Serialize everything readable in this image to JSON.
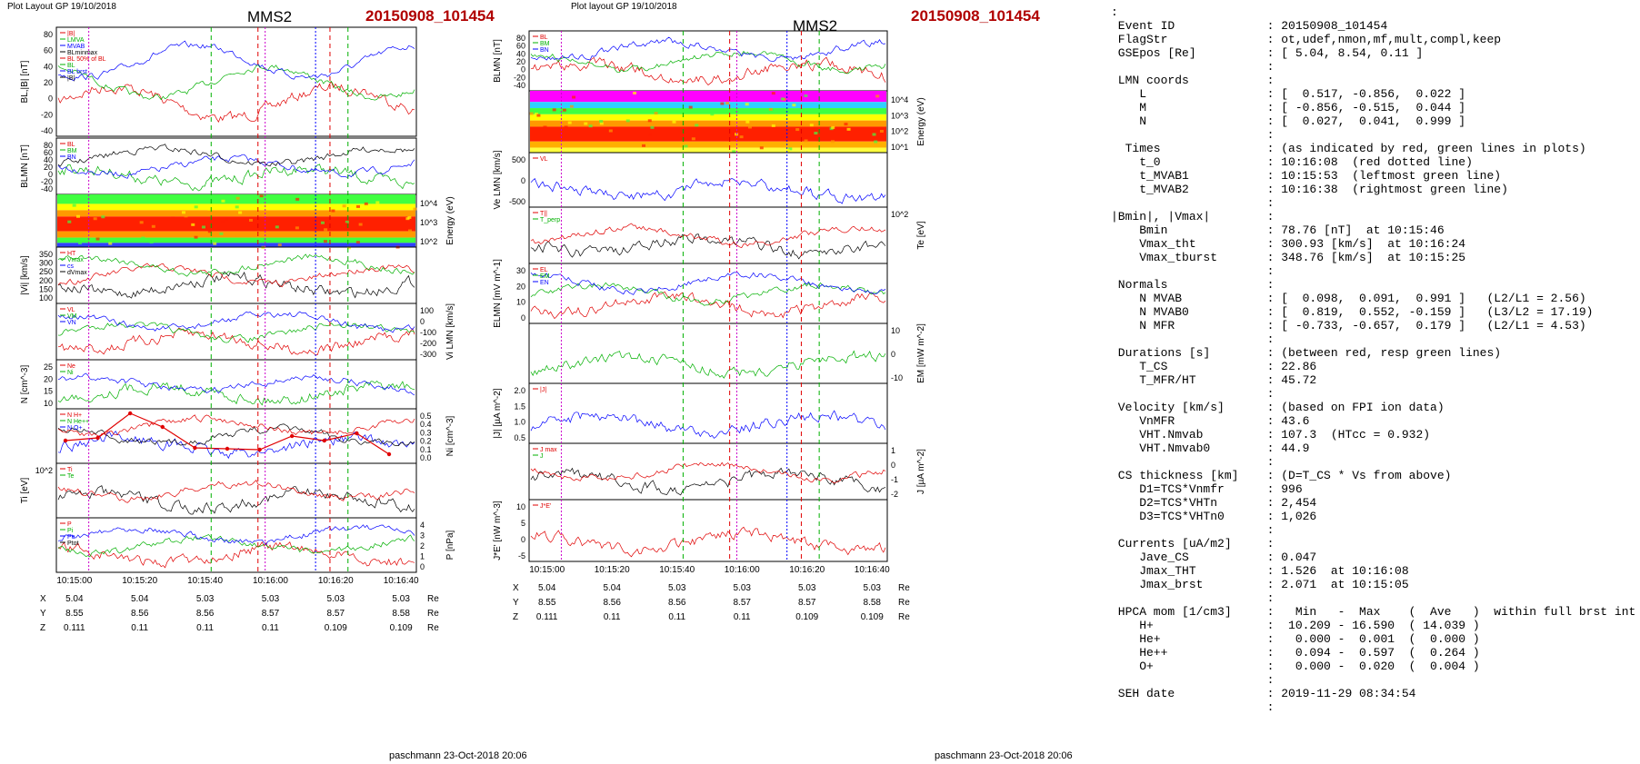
{
  "header": {
    "left_caption": "Plot Layout GP 19/10/2018",
    "mid_caption": "Plot layout GP 19/10/2018",
    "spacecraft": "MMS2",
    "event": "20150908_101454",
    "footer": "paschmann 23-Oct-2018 20:06"
  },
  "axis_time": {
    "ticks": [
      "10:15:00",
      "10:15:20",
      "10:15:40",
      "10:16:00",
      "10:16:20",
      "10:16:40"
    ]
  },
  "position_table": {
    "rows": [
      {
        "label": "X",
        "values": [
          "5.04",
          "5.04",
          "5.03",
          "5.03",
          "5.03",
          "5.03"
        ],
        "unit": "Re"
      },
      {
        "label": "Y",
        "values": [
          "8.55",
          "8.56",
          "8.56",
          "8.57",
          "8.57",
          "8.58"
        ],
        "unit": "Re"
      },
      {
        "label": "Z",
        "values": [
          "0.111",
          "0.11",
          "0.11",
          "0.11",
          "0.109",
          "0.109"
        ],
        "unit": "Re"
      }
    ]
  },
  "colors": {
    "red": "#e00000",
    "green": "#00b000",
    "blue": "#0000ff",
    "black": "#000000",
    "gray": "#888888",
    "magenta": "#cc00cc"
  },
  "chart_data": [
    {
      "type": "line",
      "title": "MMS2 20150908_101454 (left column)",
      "panels": [
        {
          "ylabel": "BL,|B| [nT]",
          "ylim": [
            -40,
            90
          ],
          "ticks": [
            "80",
            "60",
            "40",
            "20",
            "0",
            "-20",
            "-40"
          ],
          "legend": [
            "|B|",
            "LMVA",
            "MVAB",
            "BLminmax",
            "BL 50% of BL",
            "BL",
            "BL brst",
            "|B|"
          ]
        },
        {
          "ylabel": "BLMN [nT]",
          "ylim": [
            -40,
            90
          ],
          "ticks": [
            "80",
            "60",
            "40",
            "20",
            "0",
            "-20",
            "-40"
          ],
          "legend": [
            "BL",
            "BM",
            "BN"
          ]
        },
        {
          "ylabel": "Energy (eV)",
          "type": "heatmap",
          "ticks": [
            "10^4",
            "10^3",
            "10^2"
          ]
        },
        {
          "ylabel": "|Vi| [km/s]",
          "ylim": [
            100,
            350
          ],
          "ticks": [
            "350",
            "300",
            "250",
            "200",
            "150",
            "100"
          ],
          "legend": [
            "HT",
            "Vmax",
            "cs",
            "dVmax"
          ]
        },
        {
          "ylabel": "Vi LMN [km/s]",
          "ylim": [
            -350,
            100
          ],
          "ticks": [
            "100",
            "0",
            "-100",
            "-200",
            "-300"
          ],
          "legend": [
            "VL",
            "VM",
            "VN"
          ]
        },
        {
          "ylabel": "N [cm^-3]",
          "ylim": [
            5,
            25
          ],
          "ticks": [
            "25",
            "20",
            "15",
            "10"
          ],
          "legend": [
            "Ne",
            "Ni"
          ]
        },
        {
          "ylabel": "Ni [cm^-3]",
          "ylim": [
            0,
            0.55
          ],
          "ticks": [
            "0.5",
            "0.4",
            "0.3",
            "0.2",
            "0.1",
            "0.0"
          ],
          "legend": [
            "N H+",
            "N He++",
            "N O+"
          ],
          "series": [
            {
              "name": "N He++",
              "x": [
                "10:14:54",
                "10:15:06",
                "10:15:18",
                "10:15:30",
                "10:15:42",
                "10:15:54",
                "10:16:06",
                "10:16:18",
                "10:16:30",
                "10:16:42",
                "10:16:50"
              ],
              "values": [
                0.25,
                0.28,
                0.55,
                0.4,
                0.17,
                0.16,
                0.15,
                0.3,
                0.25,
                0.33,
                0.1
              ]
            }
          ]
        },
        {
          "ylabel": "Ti [eV]",
          "ticks": [
            "10^2"
          ],
          "legend": [
            "Ti",
            "Te"
          ]
        },
        {
          "ylabel": "P [nPa]",
          "ylim": [
            0,
            4
          ],
          "ticks": [
            "4",
            "3",
            "2",
            "1",
            "0"
          ],
          "legend": [
            "P",
            "Pi",
            "Pe",
            "Ptot"
          ]
        }
      ]
    },
    {
      "type": "line",
      "title": "MMS2 20150908_101454 (middle column)",
      "panels": [
        {
          "ylabel": "BLMN [nT]",
          "ylim": [
            -40,
            90
          ],
          "ticks": [
            "80",
            "60",
            "40",
            "20",
            "0",
            "-20",
            "-40"
          ],
          "legend": [
            "BL",
            "BM",
            "BN"
          ]
        },
        {
          "ylabel": "Energy (eV)",
          "type": "heatmap",
          "ticks": [
            "10^4",
            "10^3",
            "10^2",
            "10^1"
          ]
        },
        {
          "ylabel": "Ve LMN [km/s]",
          "ylim": [
            -700,
            700
          ],
          "ticks": [
            "500",
            "0",
            "-500"
          ],
          "legend": [
            "VL"
          ]
        },
        {
          "ylabel": "Te [eV]",
          "ticks": [
            "10^2"
          ],
          "legend": [
            "T||",
            "T_perp"
          ]
        },
        {
          "ylabel": "ELMN [mV m^-1]",
          "ylim": [
            -5,
            35
          ],
          "ticks": [
            "30",
            "20",
            "10",
            "0"
          ],
          "legend": [
            "EL",
            "EM",
            "EN"
          ]
        },
        {
          "ylabel": "EM [mW m^-2]",
          "ylim": [
            -15,
            15
          ],
          "ticks": [
            "10",
            "0",
            "-10"
          ]
        },
        {
          "ylabel": "|J| [µA m^-2]",
          "ylim": [
            0,
            2
          ],
          "ticks": [
            "2.0",
            "1.5",
            "1.0",
            "0.5"
          ],
          "legend": [
            "|J|"
          ]
        },
        {
          "ylabel": "J [µA m^-2]",
          "ylim": [
            -2,
            1.5
          ],
          "ticks": [
            "1",
            "0",
            "-1",
            "-2"
          ],
          "legend": [
            "J max",
            "J"
          ]
        },
        {
          "ylabel": "J*E' [nW m^-3]",
          "ylim": [
            -5,
            12
          ],
          "ticks": [
            "10",
            "5",
            "0",
            "-5"
          ],
          "legend": [
            "J*E'"
          ]
        }
      ]
    }
  ],
  "info_lines": [
    ":",
    " Event ID             : 20150908_101454",
    " FlagStr              : ot,udef,nmon,mf,mult,compl,keep",
    " GSEpos [Re]          : [ 5.04, 8.54, 0.11 ]",
    "                      :",
    " LMN coords           :",
    "    L                 : [  0.517, -0.856,  0.022 ]",
    "    M                 : [ -0.856, -0.515,  0.044 ]",
    "    N                 : [  0.027,  0.041,  0.999 ]",
    "                      :",
    "  Times               : (as indicated by red, green lines in plots)",
    "    t_0               : 10:16:08  (red dotted line)",
    "    t_MVAB1           : 10:15:53  (leftmost green line)",
    "    t_MVAB2           : 10:16:38  (rightmost green line)",
    "                      :",
    "|Bmin|, |Vmax|        :",
    "    Bmin              : 78.76 [nT]  at 10:15:46",
    "    Vmax_tht          : 300.93 [km/s]  at 10:16:24",
    "    Vmax_tburst       : 348.76 [km/s]  at 10:15:25",
    "                      :",
    " Normals              :",
    "    N MVAB            : [  0.098,  0.091,  0.991 ]   (L2/L1 = 2.56)",
    "    N MVAB0           : [  0.819,  0.552, -0.159 ]   (L3/L2 = 17.19)",
    "    N MFR             : [ -0.733, -0.657,  0.179 ]   (L2/L1 = 4.53)",
    "                      :",
    " Durations [s]        : (between red, resp green lines)",
    "    T_CS              : 22.86",
    "    T_MFR/HT          : 45.72",
    "                      :",
    " Velocity [km/s]      : (based on FPI ion data)",
    "    VnMFR             : 43.6",
    "    VHT.Nmvab         : 107.3  (HTcc = 0.932)",
    "    VHT.Nmvab0        : 44.9",
    "                      :",
    " CS thickness [km]    : (D=T_CS * Vs from above)",
    "    D1=TCS*Vnmfr      : 996",
    "    D2=TCS*VHTn       : 2,454",
    "    D3=TCS*VHTn0      : 1,026",
    "                      :",
    " Currents [uA/m2]     :",
    "    Jave_CS           : 0.047",
    "    Jmax_THT          : 1.526  at 10:16:08",
    "    Jmax_brst         : 2.071  at 10:15:05",
    "                      :",
    " HPCA mom [1/cm3]     :   Min   -  Max    (  Ave   )  within full brst int",
    "    H+                :  10.209 - 16.590  ( 14.039 )",
    "    He+               :   0.000 -  0.001  (  0.000 )",
    "    He++              :   0.094 -  0.597  (  0.264 )",
    "    O+                :   0.000 -  0.020  (  0.004 )",
    "                      :",
    " SEH date             : 2019-11-29 08:34:54",
    "                      :"
  ]
}
